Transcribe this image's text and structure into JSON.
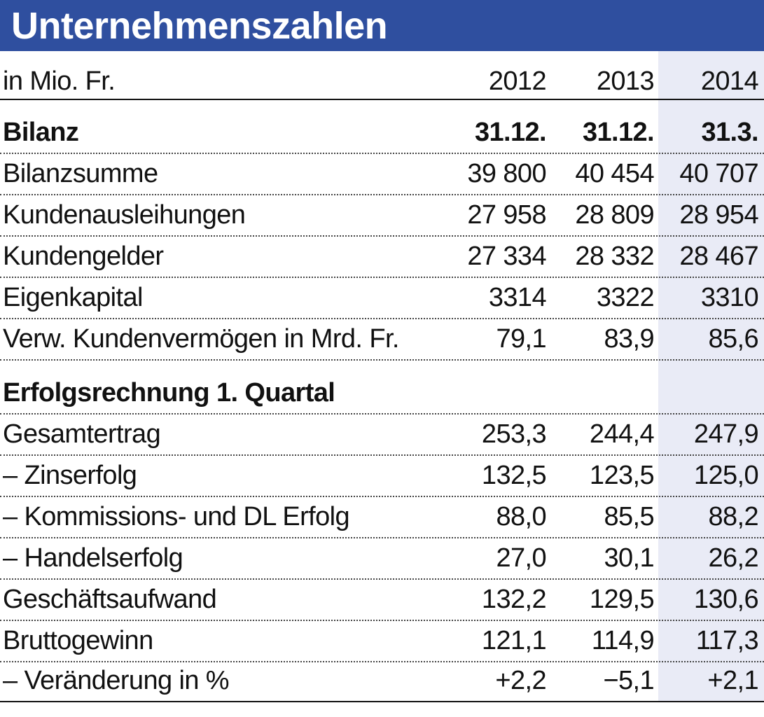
{
  "title": "Unternehmenszahlen",
  "header": {
    "unit": "in Mio. Fr.",
    "years": [
      "2012",
      "2013",
      "2014"
    ]
  },
  "bilanz": {
    "heading": "Bilanz",
    "dates": [
      "31.12.",
      "31.12.",
      "31.3."
    ],
    "rows": [
      {
        "label": "Bilanzsumme",
        "v": [
          "39 800",
          "40 454",
          "40 707"
        ]
      },
      {
        "label": "Kundenausleihungen",
        "v": [
          "27 958",
          "28 809",
          "28 954"
        ]
      },
      {
        "label": "Kundengelder",
        "v": [
          "27 334",
          "28 332",
          "28 467"
        ]
      },
      {
        "label": "Eigenkapital",
        "v": [
          "3314",
          "3322",
          "3310"
        ]
      },
      {
        "label": "Verw. Kundenvermögen in Mrd. Fr.",
        "v": [
          "79,1",
          "83,9",
          "85,6"
        ]
      }
    ]
  },
  "erfolg": {
    "heading": "Erfolgsrechnung 1. Quartal",
    "rows": [
      {
        "label": "Gesamtertrag",
        "v": [
          "253,3",
          "244,4",
          "247,9"
        ]
      },
      {
        "label": "– Zinserfolg",
        "v": [
          "132,5",
          "123,5",
          "125,0"
        ]
      },
      {
        "label": "– Kommissions- und DL Erfolg",
        "v": [
          "88,0",
          "85,5",
          "88,2"
        ]
      },
      {
        "label": "– Handelserfolg",
        "v": [
          "27,0",
          "30,1",
          "26,2"
        ]
      },
      {
        "label": "Geschäftsaufwand",
        "v": [
          "132,2",
          "129,5",
          "130,6"
        ]
      },
      {
        "label": "Bruttogewinn",
        "v": [
          "121,1",
          "114,9",
          "117,3"
        ]
      },
      {
        "label": "– Veränderung in %",
        "v": [
          "+2,2",
          "−5,1",
          "+2,1"
        ]
      }
    ]
  }
}
